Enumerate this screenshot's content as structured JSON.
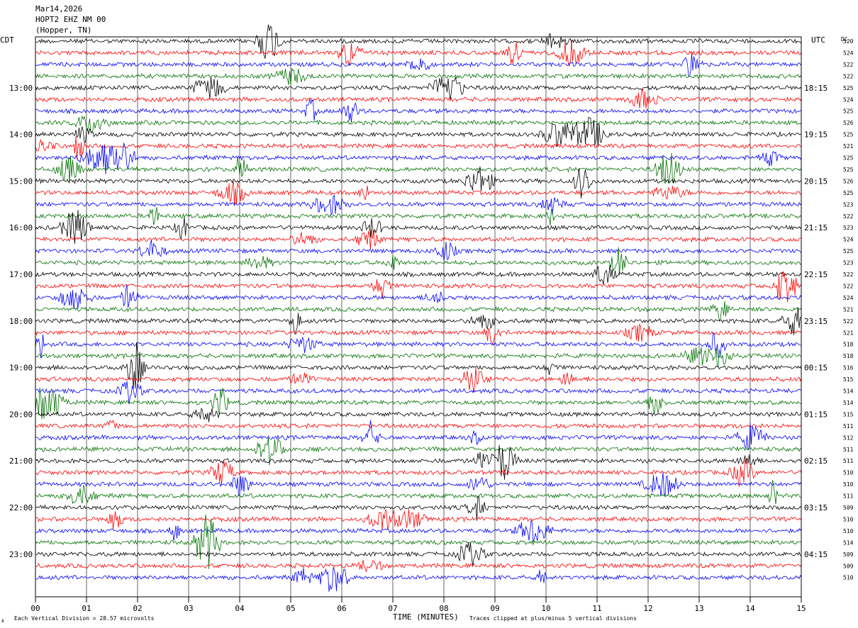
{
  "header": {
    "date": "Mar14,2026",
    "station": "HOPT2 EHZ NM 00",
    "location": "(Hopper, TN)"
  },
  "chart_data": {
    "type": "line",
    "title": "",
    "xlabel": "TIME (MINUTES)",
    "ylabel": "",
    "xlim": [
      0,
      15
    ],
    "x_ticks": [
      "00",
      "01",
      "02",
      "03",
      "04",
      "05",
      "06",
      "07",
      "08",
      "09",
      "10",
      "11",
      "12",
      "13",
      "14",
      "15"
    ],
    "left_axis_label": "CDT",
    "right_axis_label": "UTC",
    "dc_label": "DC",
    "left_times": [
      "13:00",
      "14:00",
      "15:00",
      "16:00",
      "17:00",
      "18:00",
      "19:00",
      "20:00",
      "21:00",
      "22:00",
      "23:00"
    ],
    "right_times": [
      "18:15",
      "19:15",
      "20:15",
      "21:15",
      "22:15",
      "23:15",
      "00:15",
      "01:15",
      "02:15",
      "03:15",
      "04:15"
    ],
    "hour_label_trace_indices": [
      4,
      8,
      12,
      16,
      20,
      24,
      28,
      32,
      36,
      40,
      44
    ],
    "trace_colors": [
      "#000000",
      "#ff0000",
      "#0000ff",
      "#007000"
    ],
    "dc_offsets": [
      520,
      524,
      522,
      522,
      525,
      524,
      525,
      526,
      525,
      521,
      525,
      525,
      526,
      525,
      523,
      522,
      523,
      524,
      525,
      523,
      522,
      522,
      524,
      521,
      522,
      521,
      518,
      518,
      516,
      515,
      514,
      514,
      515,
      511,
      512,
      511,
      511,
      510,
      510,
      511,
      509,
      510,
      510,
      514,
      509,
      509,
      510
    ],
    "footer_left": "Each Vertical Division =   28.57 microvolts",
    "footer_right": "Traces clipped at plus/minus 5 vertical divisions",
    "footer_mark": "A"
  }
}
